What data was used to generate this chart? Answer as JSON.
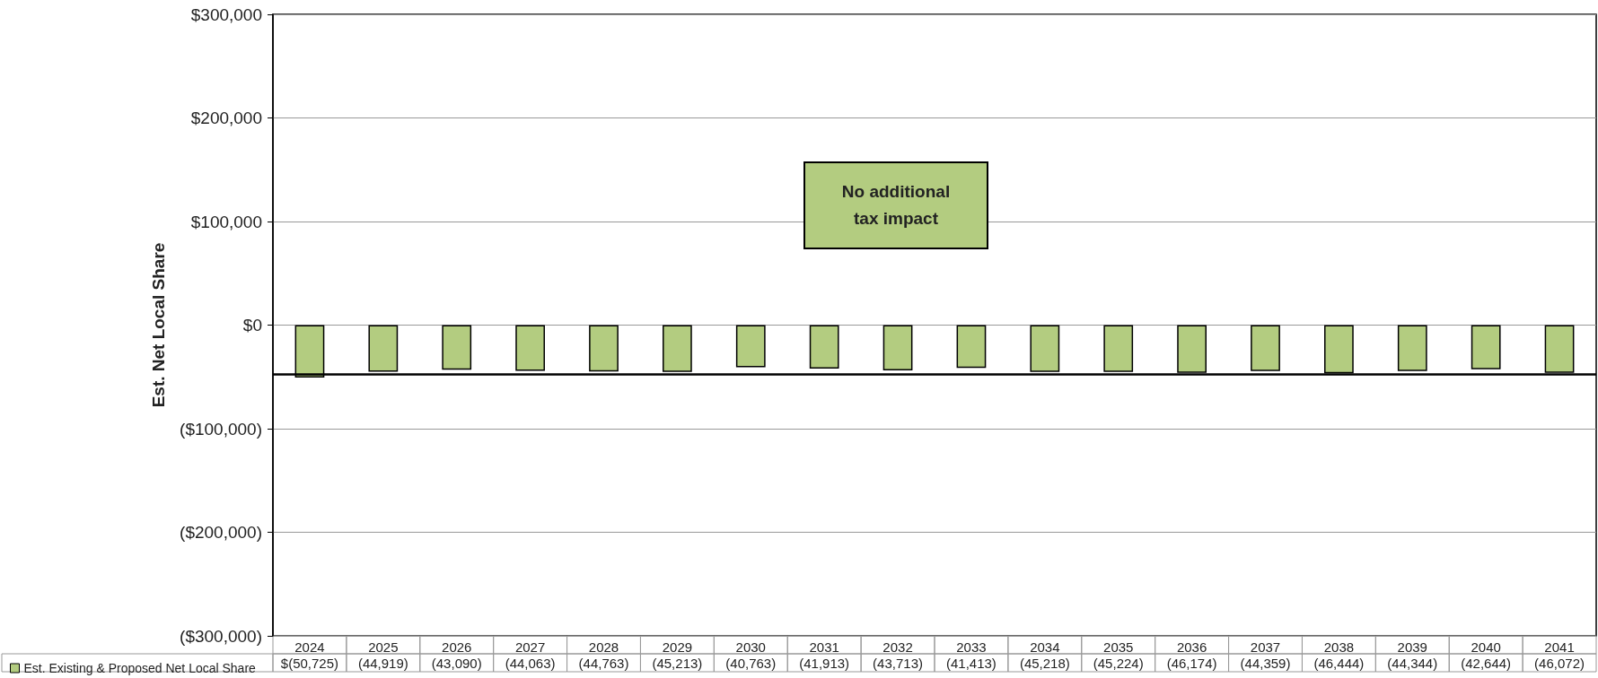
{
  "chart_data": {
    "type": "bar",
    "ylabel": "Est. Net Local Share",
    "categories": [
      "2024",
      "2025",
      "2026",
      "2027",
      "2028",
      "2029",
      "2030",
      "2031",
      "2032",
      "2033",
      "2034",
      "2035",
      "2036",
      "2037",
      "2038",
      "2039",
      "2040",
      "2041"
    ],
    "series": [
      {
        "name": "Est. Existing & Proposed Net Local Share",
        "color": "#b3cc80",
        "values": [
          -50725,
          -44919,
          -43090,
          -44063,
          -44763,
          -45213,
          -40763,
          -41913,
          -43713,
          -41413,
          -45218,
          -45224,
          -46174,
          -44359,
          -46444,
          -44344,
          -42644,
          -46072
        ],
        "value_labels": [
          "$(50,725)",
          "(44,919)",
          "(43,090)",
          "(44,063)",
          "(44,763)",
          "(45,213)",
          "(40,763)",
          "(41,913)",
          "(43,713)",
          "(41,413)",
          "(45,218)",
          "(45,224)",
          "(46,174)",
          "(44,359)",
          "(46,444)",
          "(44,344)",
          "(42,644)",
          "(46,072)"
        ]
      }
    ],
    "ylim": [
      -300000,
      300000
    ],
    "yticks": [
      {
        "value": -300000,
        "label": "($300,000)"
      },
      {
        "value": -200000,
        "label": "($200,000)"
      },
      {
        "value": -100000,
        "label": "($100,000)"
      },
      {
        "value": 0,
        "label": "$0"
      },
      {
        "value": 100000,
        "label": "$100,000"
      },
      {
        "value": 200000,
        "label": "$200,000"
      },
      {
        "value": 300000,
        "label": "$300,000"
      }
    ],
    "ref_lines": [
      {
        "axis": "y",
        "value": -47000,
        "color": "#000000",
        "line_style": "solid"
      }
    ],
    "annotations": [
      "No additional tax impact"
    ],
    "grid": "y",
    "legend": "bottom left"
  }
}
